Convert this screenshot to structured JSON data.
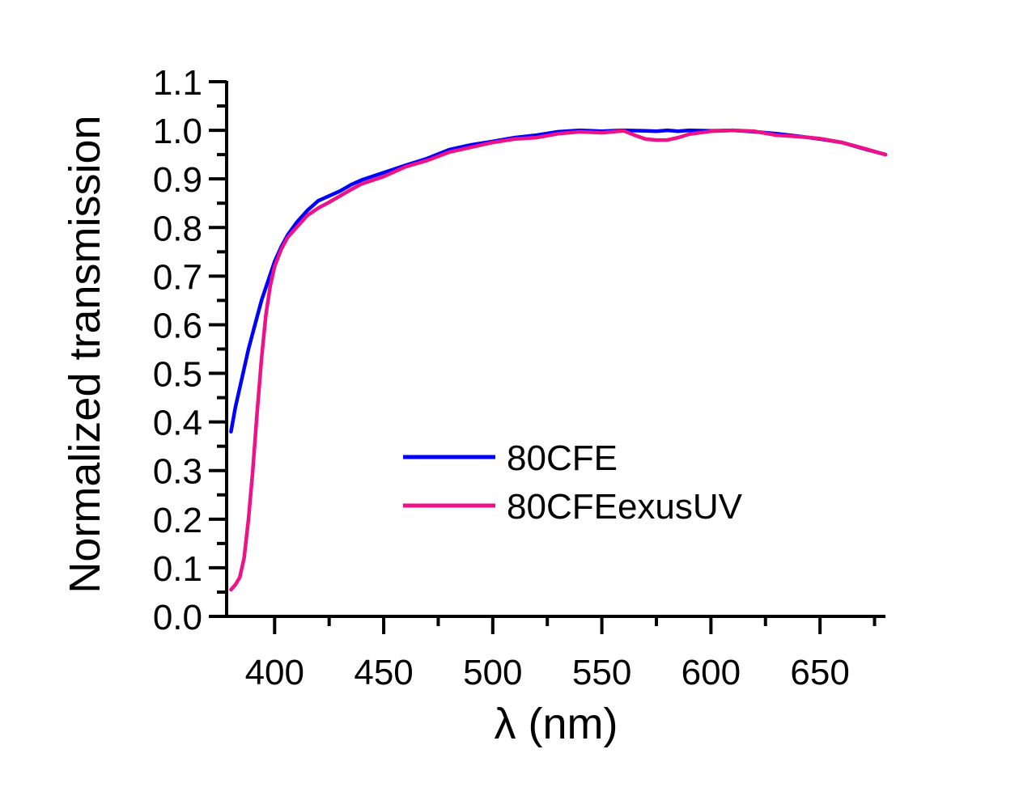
{
  "chart_data": {
    "type": "line",
    "title": "",
    "xlabel": "λ (nm)",
    "ylabel": "Normalized transmission",
    "xlim": [
      378,
      680
    ],
    "ylim": [
      0.0,
      1.1
    ],
    "xticks": [
      400,
      450,
      500,
      550,
      600,
      650
    ],
    "xtick_labels": [
      "400",
      "450",
      "500",
      "550",
      "600",
      "650"
    ],
    "yticks": [
      0.0,
      0.1,
      0.2,
      0.3,
      0.4,
      0.5,
      0.6,
      0.7,
      0.8,
      0.9,
      1.0,
      1.1
    ],
    "ytick_labels": [
      "0.0",
      "0.1",
      "0.2",
      "0.3",
      "0.4",
      "0.5",
      "0.6",
      "0.7",
      "0.8",
      "0.9",
      "1.0",
      "1.1"
    ],
    "grid": false,
    "legend_position": "center",
    "series": [
      {
        "name": "80CFE",
        "color": "#0000ff",
        "x": [
          380,
          382,
          385,
          388,
          391,
          394,
          397,
          400,
          403,
          406,
          410,
          415,
          420,
          425,
          430,
          435,
          440,
          450,
          460,
          470,
          480,
          490,
          500,
          510,
          520,
          530,
          540,
          550,
          560,
          570,
          575,
          580,
          585,
          590,
          600,
          610,
          620,
          630,
          640,
          650,
          660,
          670,
          680
        ],
        "y": [
          0.38,
          0.43,
          0.49,
          0.55,
          0.6,
          0.65,
          0.69,
          0.73,
          0.76,
          0.785,
          0.81,
          0.835,
          0.855,
          0.865,
          0.875,
          0.888,
          0.898,
          0.913,
          0.928,
          0.942,
          0.96,
          0.97,
          0.977,
          0.985,
          0.99,
          0.997,
          1.0,
          0.998,
          1.0,
          0.999,
          0.998,
          1.0,
          0.998,
          1.0,
          0.999,
          1.0,
          0.997,
          0.993,
          0.988,
          0.982,
          0.975,
          0.962,
          0.95
        ]
      },
      {
        "name": "80CFEexusUV",
        "color": "#ee1188",
        "x": [
          380,
          382,
          384,
          386,
          388,
          390,
          392,
          394,
          396,
          398,
          400,
          403,
          406,
          410,
          415,
          420,
          425,
          430,
          435,
          440,
          450,
          460,
          470,
          480,
          490,
          500,
          510,
          520,
          530,
          540,
          550,
          560,
          565,
          570,
          575,
          580,
          585,
          590,
          600,
          610,
          620,
          630,
          640,
          650,
          660,
          670,
          680
        ],
        "y": [
          0.055,
          0.065,
          0.08,
          0.12,
          0.2,
          0.3,
          0.42,
          0.53,
          0.62,
          0.68,
          0.72,
          0.755,
          0.78,
          0.8,
          0.825,
          0.84,
          0.852,
          0.865,
          0.878,
          0.89,
          0.905,
          0.925,
          0.938,
          0.955,
          0.965,
          0.975,
          0.982,
          0.985,
          0.993,
          0.997,
          0.995,
          0.999,
          0.99,
          0.982,
          0.98,
          0.98,
          0.985,
          0.992,
          0.998,
          1.0,
          0.998,
          0.99,
          0.987,
          0.983,
          0.975,
          0.963,
          0.95
        ]
      }
    ]
  }
}
